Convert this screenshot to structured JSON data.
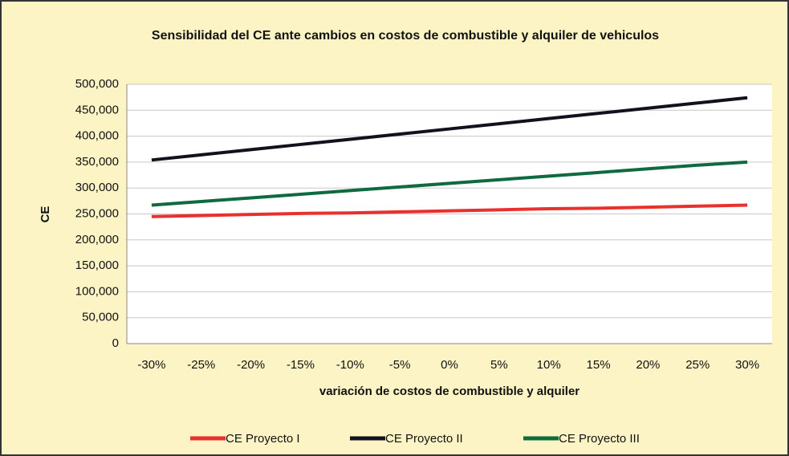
{
  "chart_data": {
    "type": "line",
    "title": "Sensibilidad del CE ante cambios en costos de combustible y alquiler de vehiculos",
    "x_label": "variación de costos de combustible y alquiler",
    "y_label": "CE",
    "categories": [
      "-30%",
      "-25%",
      "-20%",
      "-15%",
      "-10%",
      "-5%",
      "0%",
      "5%",
      "10%",
      "15%",
      "20%",
      "25%",
      "30%"
    ],
    "series": [
      {
        "name": "CE Proyecto I",
        "color": "#e8312f",
        "values": [
          245000,
          247000,
          249000,
          251000,
          252000,
          254000,
          256000,
          258000,
          260000,
          261000,
          263000,
          265000,
          267000
        ]
      },
      {
        "name": "CE Proyecto II",
        "color": "#12111e",
        "values": [
          354000,
          364000,
          374000,
          384000,
          394000,
          404000,
          414000,
          424000,
          434000,
          444000,
          454000,
          464000,
          474000
        ]
      },
      {
        "name": "CE Proyecto III",
        "color": "#0e6a3f",
        "values": [
          267000,
          274000,
          281000,
          288000,
          295000,
          302000,
          309000,
          316000,
          323000,
          330000,
          337000,
          344000,
          350000
        ]
      }
    ],
    "ylim": [
      0,
      500000
    ],
    "yticks": [
      0,
      {
        "value": 50000,
        "label": "50,000"
      },
      {
        "value": 100000,
        "label": "100,000"
      },
      {
        "value": 150000,
        "label": "150,000"
      },
      {
        "value": 200000,
        "label": "200,000"
      },
      {
        "value": 250000,
        "label": "250,000"
      },
      {
        "value": 300000,
        "label": "300,000"
      },
      {
        "value": 350000,
        "label": "350,000"
      },
      {
        "value": 400000,
        "label": "400,000"
      },
      {
        "value": 450000,
        "label": "450,000"
      },
      {
        "value": 500000,
        "label": "500,000"
      }
    ],
    "grid": true,
    "legend": "bottom"
  }
}
